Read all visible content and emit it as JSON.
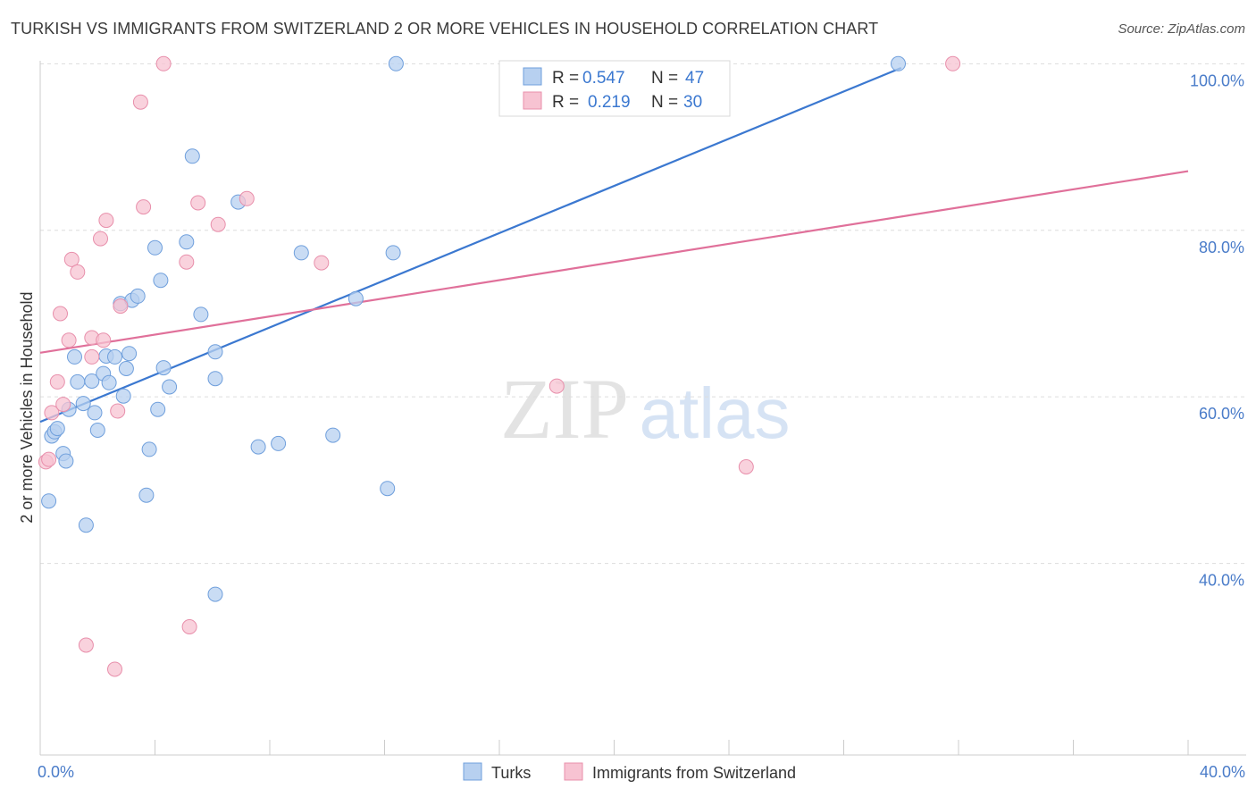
{
  "title": "TURKISH VS IMMIGRANTS FROM SWITZERLAND 2 OR MORE VEHICLES IN HOUSEHOLD CORRELATION CHART",
  "source": "Source: ZipAtlas.com",
  "watermark": {
    "zip": "ZIP",
    "atlas": "atlas"
  },
  "colors": {
    "blue_fill": "#b7d0f0",
    "blue_stroke": "#6f9fdc",
    "blue_line": "#3b78d0",
    "pink_fill": "#f7c3d2",
    "pink_stroke": "#e88fab",
    "pink_line": "#e0709a",
    "tick_text": "#4a7cc9",
    "grid": "#dddddd"
  },
  "legend": {
    "rows": [
      {
        "r_label": "R =",
        "r_value": "0.547",
        "n_label": "N =",
        "n_value": "47",
        "series": "turks"
      },
      {
        "r_label": "R =",
        "r_value": "0.219",
        "n_label": "N =",
        "n_value": "30",
        "series": "swiss"
      }
    ]
  },
  "chart_data": {
    "type": "scatter",
    "xlabel": "",
    "ylabel": "2 or more Vehicles in Household",
    "xlim": [
      0,
      40
    ],
    "ylim": [
      17,
      101
    ],
    "x_tick_labels": [
      "0.0%",
      "40.0%"
    ],
    "y_ticks": [
      40,
      60,
      80,
      100
    ],
    "y_tick_labels": [
      "40.0%",
      "60.0%",
      "80.0%",
      "100.0%"
    ],
    "grid": true,
    "legend_position": "top-center",
    "series": [
      {
        "name": "Turks",
        "key": "turks",
        "trend": {
          "x": [
            0.0,
            30.0
          ],
          "y": [
            57.0,
            99.5
          ]
        },
        "points": [
          [
            0.3,
            47.5
          ],
          [
            0.4,
            55.3
          ],
          [
            0.5,
            55.8
          ],
          [
            0.6,
            56.2
          ],
          [
            0.8,
            53.2
          ],
          [
            0.9,
            52.3
          ],
          [
            1.0,
            58.5
          ],
          [
            1.2,
            64.8
          ],
          [
            1.3,
            61.8
          ],
          [
            1.5,
            59.2
          ],
          [
            1.6,
            44.6
          ],
          [
            1.8,
            61.9
          ],
          [
            1.9,
            58.1
          ],
          [
            2.0,
            56.0
          ],
          [
            2.2,
            62.8
          ],
          [
            2.3,
            64.9
          ],
          [
            2.4,
            61.7
          ],
          [
            2.6,
            64.8
          ],
          [
            2.8,
            71.2
          ],
          [
            2.9,
            60.1
          ],
          [
            3.0,
            63.4
          ],
          [
            3.1,
            65.2
          ],
          [
            3.2,
            71.6
          ],
          [
            3.4,
            72.1
          ],
          [
            3.8,
            53.7
          ],
          [
            3.7,
            48.2
          ],
          [
            4.0,
            77.9
          ],
          [
            4.1,
            58.5
          ],
          [
            4.2,
            74.0
          ],
          [
            4.3,
            63.5
          ],
          [
            4.5,
            61.2
          ],
          [
            5.1,
            78.6
          ],
          [
            5.3,
            88.9
          ],
          [
            5.6,
            69.9
          ],
          [
            6.1,
            65.4
          ],
          [
            6.1,
            36.3
          ],
          [
            6.1,
            62.2
          ],
          [
            6.9,
            83.4
          ],
          [
            7.6,
            54.0
          ],
          [
            8.3,
            54.4
          ],
          [
            9.1,
            77.3
          ],
          [
            10.2,
            55.4
          ],
          [
            11.0,
            71.8
          ],
          [
            12.1,
            49.0
          ],
          [
            12.3,
            77.3
          ],
          [
            12.4,
            100.0
          ],
          [
            29.9,
            100.0
          ]
        ]
      },
      {
        "name": "Immigrants from Switzerland",
        "key": "swiss",
        "trend": {
          "x": [
            0.0,
            40.0
          ],
          "y": [
            65.3,
            87.1
          ]
        },
        "points": [
          [
            0.2,
            52.2
          ],
          [
            0.3,
            52.5
          ],
          [
            0.4,
            58.1
          ],
          [
            0.6,
            61.8
          ],
          [
            0.7,
            70.0
          ],
          [
            0.8,
            59.1
          ],
          [
            1.0,
            66.8
          ],
          [
            1.1,
            76.5
          ],
          [
            1.3,
            75.0
          ],
          [
            1.6,
            30.2
          ],
          [
            1.8,
            67.1
          ],
          [
            1.8,
            64.8
          ],
          [
            2.1,
            79.0
          ],
          [
            2.2,
            66.8
          ],
          [
            2.3,
            81.2
          ],
          [
            2.6,
            27.3
          ],
          [
            2.7,
            58.3
          ],
          [
            2.8,
            70.9
          ],
          [
            3.5,
            95.4
          ],
          [
            3.6,
            82.8
          ],
          [
            4.3,
            100.0
          ],
          [
            5.1,
            76.2
          ],
          [
            5.2,
            32.4
          ],
          [
            5.5,
            83.3
          ],
          [
            6.2,
            80.7
          ],
          [
            7.2,
            83.8
          ],
          [
            9.8,
            76.1
          ],
          [
            18.0,
            61.3
          ],
          [
            24.6,
            51.6
          ],
          [
            31.8,
            100.0
          ]
        ]
      }
    ]
  }
}
